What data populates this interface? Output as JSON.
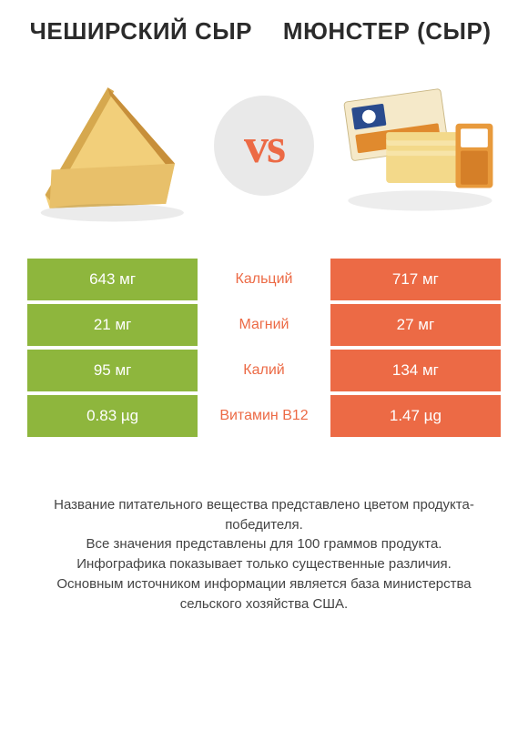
{
  "products": {
    "left": {
      "title": "ЧЕШИРСКИЙ СЫР"
    },
    "right": {
      "title": "МЮНСТЕР (СЫР)"
    }
  },
  "vs_label": "vs",
  "colors": {
    "left_bar": "#8eb63d",
    "right_bar": "#ec6a45",
    "row_bg": "#ffffff",
    "vs_circle": "#e9e9e9",
    "vs_text": "#ec6a45",
    "nutrient_winner_left": "#8eb63d",
    "nutrient_winner_right": "#ec6a45"
  },
  "rows": [
    {
      "nutrient": "Кальций",
      "left": "643 мг",
      "right": "717 мг",
      "winner": "right"
    },
    {
      "nutrient": "Магний",
      "left": "21 мг",
      "right": "27 мг",
      "winner": "right"
    },
    {
      "nutrient": "Калий",
      "left": "95 мг",
      "right": "134 мг",
      "winner": "right"
    },
    {
      "nutrient": "Витамин B12",
      "left": "0.83 µg",
      "right": "1.47 µg",
      "winner": "right"
    }
  ],
  "footnote": "Название питательного вещества представлено цветом продукта-победителя.\nВсе значения представлены для 100 граммов продукта.\nИнфографика показывает только существенные различия.\nОсновным источником информации является база министерства сельского хозяйства США."
}
